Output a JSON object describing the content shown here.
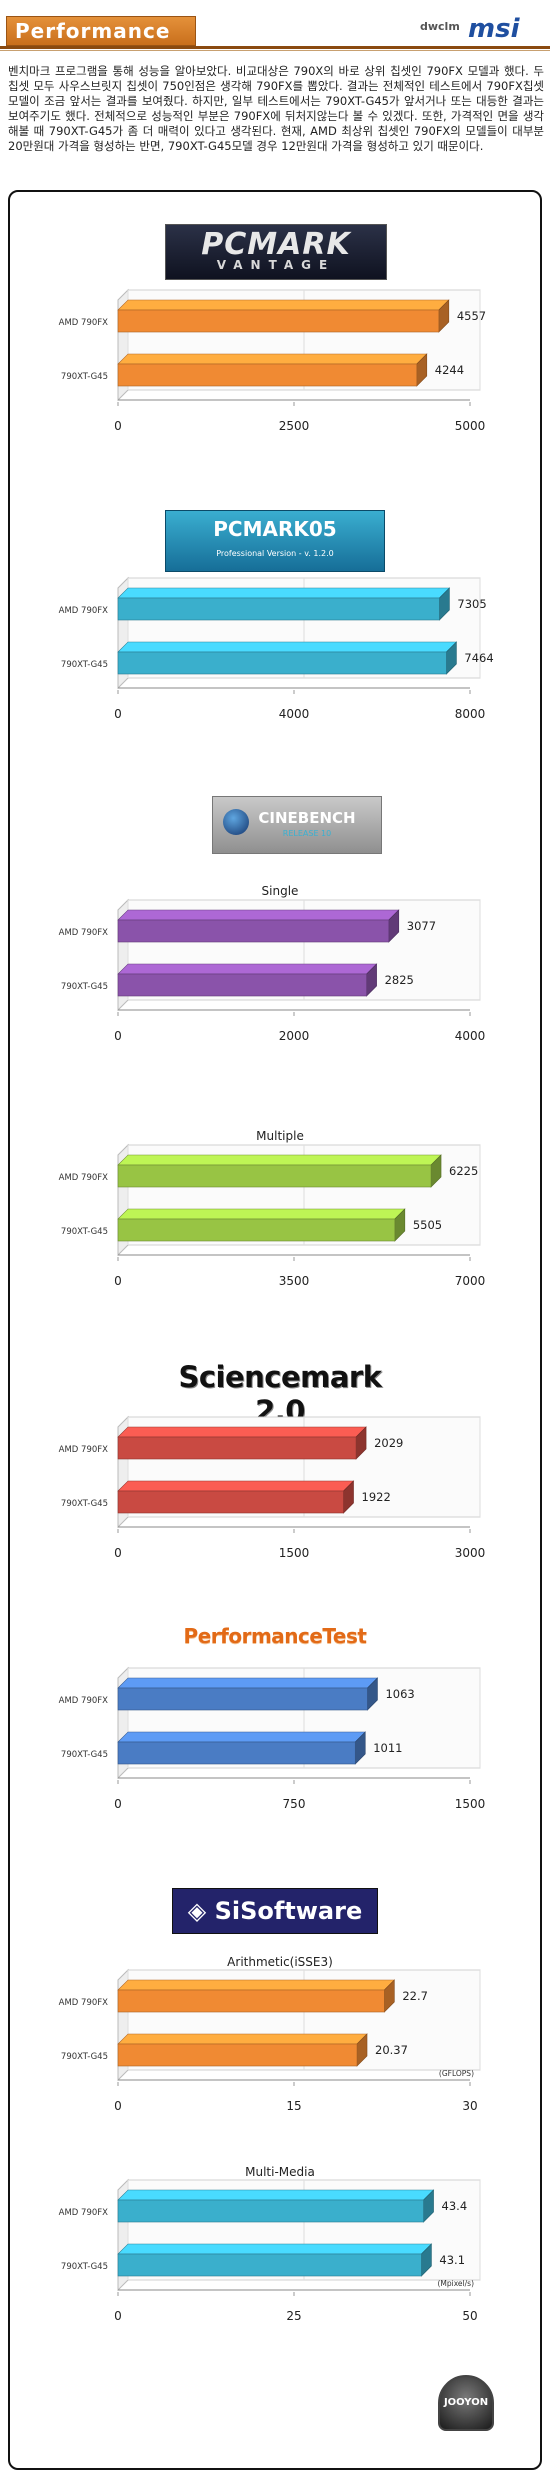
{
  "header": {
    "section_title": "Performance",
    "brand_small": "dwclm",
    "brand_logo": "msi"
  },
  "intro_text": "벤치마크 프로그램을 통해 성능을 알아보았다. 비교대상은 790X의 바로 상위 칩셋인 790FX 모델과 했다. 두 칩셋 모두 사우스브릿지 칩셋이 750인점은 생각해 790FX를 뽑았다. 결과는 전체적인 테스트에서 790FX칩셋모델이 조금 앞서는 결과를 보여줬다. 하지만, 일부 테스트에서는 790XT-G45가 앞서거나 또는 대등한 결과는 보여주기도 했다. 전체적으로 성능적인 부분은 790FX에 뒤처지않는다 볼 수 있겠다. 또한, 가격적인 면을 생각해볼 때 790XT-G45가 좀 더 매력이 있다고 생각된다. 현재, AMD 최상위 칩셋인 790FX의 모델들이 대부분 20만원대 가격을 형성하는 반면, 790XT-G45모델 경우 12만원대 가격을 형성하고 있기 때문이다.",
  "logos": {
    "pcmark_vantage": {
      "line1": "PCMARK",
      "line2": "VANTAGE"
    },
    "pcmark05": {
      "line1": "PCMARK05",
      "line2": "Professional Version - v. 1.2.0"
    },
    "cinebench": {
      "line1": "CINEBENCH",
      "line2": "RELEASE 10"
    },
    "sciencemark": {
      "line1": "Sciencemark 2.0"
    },
    "performancetest": {
      "line1": "PerformanceTest"
    },
    "sisoftware": {
      "line1": "◈ SiSoftware"
    },
    "jooyon": {
      "line1": "JOOYON"
    }
  },
  "colors": {
    "orange": "#f08a33",
    "teal": "#3aafcc",
    "purple": "#8a53aa",
    "green": "#98c444",
    "red": "#c94a42",
    "blue": "#4a7cc4"
  },
  "chart_data": [
    {
      "id": "pcmark-vantage",
      "type": "bar",
      "orientation": "horizontal",
      "title": "",
      "categories": [
        "AMD 790FX",
        "790XT-G45"
      ],
      "values": [
        4557,
        4244
      ],
      "xlim": [
        0,
        5000
      ],
      "xticks": [
        "0",
        "2500",
        "5000"
      ],
      "color": "#f08a33",
      "unit": ""
    },
    {
      "id": "pcmark05",
      "type": "bar",
      "orientation": "horizontal",
      "title": "",
      "categories": [
        "AMD 790FX",
        "790XT-G45"
      ],
      "values": [
        7305,
        7464
      ],
      "xlim": [
        0,
        8000
      ],
      "xticks": [
        "0",
        "4000",
        "8000"
      ],
      "color": "#3aafcc",
      "unit": ""
    },
    {
      "id": "cinebench-single",
      "type": "bar",
      "orientation": "horizontal",
      "title": "Single",
      "categories": [
        "AMD 790FX",
        "790XT-G45"
      ],
      "values": [
        3077,
        2825
      ],
      "xlim": [
        0,
        4000
      ],
      "xticks": [
        "0",
        "2000",
        "4000"
      ],
      "color": "#8a53aa",
      "unit": ""
    },
    {
      "id": "cinebench-multiple",
      "type": "bar",
      "orientation": "horizontal",
      "title": "Multiple",
      "categories": [
        "AMD 790FX",
        "790XT-G45"
      ],
      "values": [
        6225,
        5505
      ],
      "xlim": [
        0,
        7000
      ],
      "xticks": [
        "0",
        "3500",
        "7000"
      ],
      "color": "#98c444",
      "unit": ""
    },
    {
      "id": "sciencemark",
      "type": "bar",
      "orientation": "horizontal",
      "title": "",
      "categories": [
        "AMD 790FX",
        "790XT-G45"
      ],
      "values": [
        2029,
        1922
      ],
      "xlim": [
        0,
        3000
      ],
      "xticks": [
        "0",
        "1500",
        "3000"
      ],
      "color": "#c94a42",
      "unit": ""
    },
    {
      "id": "performancetest",
      "type": "bar",
      "orientation": "horizontal",
      "title": "",
      "categories": [
        "AMD 790FX",
        "790XT-G45"
      ],
      "values": [
        1063,
        1011
      ],
      "xlim": [
        0,
        1500
      ],
      "xticks": [
        "0",
        "750",
        "1500"
      ],
      "color": "#4a7cc4",
      "unit": ""
    },
    {
      "id": "sisoft-arithmetic",
      "type": "bar",
      "orientation": "horizontal",
      "title": "Arithmetic(iSSE3)",
      "categories": [
        "AMD 790FX",
        "790XT-G45"
      ],
      "values": [
        22.7,
        20.37
      ],
      "xlim": [
        0,
        30
      ],
      "xticks": [
        "0",
        "15",
        "30"
      ],
      "color": "#f08a33",
      "unit": "(GFLOPS)"
    },
    {
      "id": "sisoft-multimedia",
      "type": "bar",
      "orientation": "horizontal",
      "title": "Multi-Media",
      "categories": [
        "AMD 790FX",
        "790XT-G45"
      ],
      "values": [
        43.4,
        43.1
      ],
      "xlim": [
        0,
        50
      ],
      "xticks": [
        "0",
        "25",
        "50"
      ],
      "color": "#3aafcc",
      "unit": "(Mpixel/s)"
    }
  ]
}
